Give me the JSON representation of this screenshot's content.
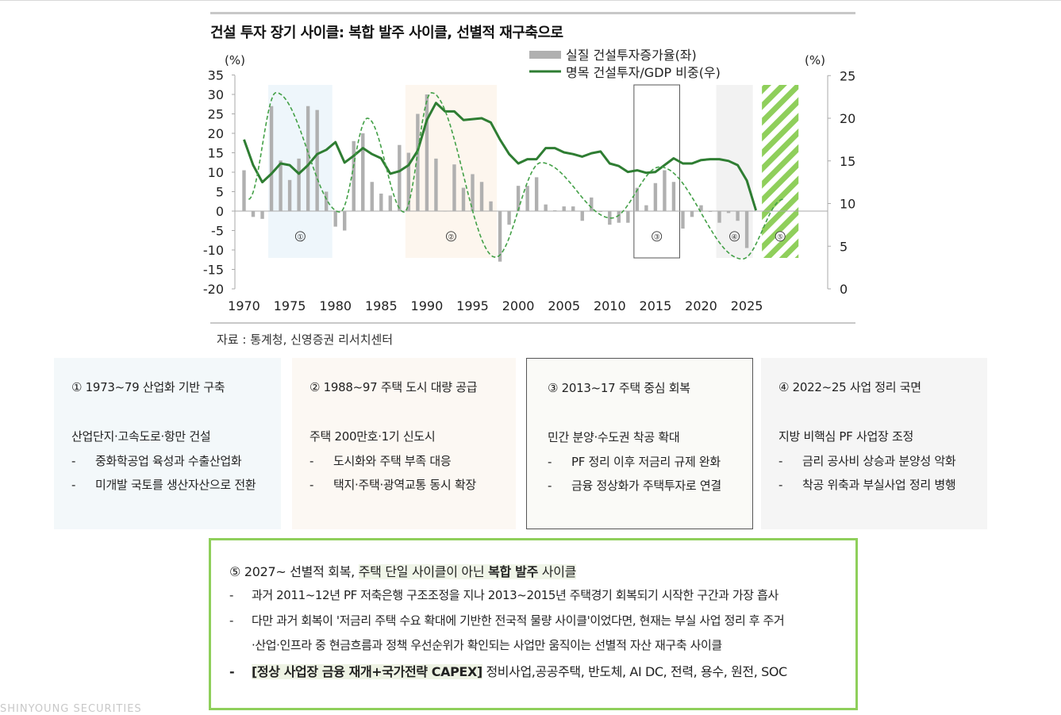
{
  "title": "건설 투자 장기 사이클: 복합 발주 사이클, 선별적 재구축으로",
  "source": "자료 : 통계청, 신영증권 리서치센터",
  "footer": "SHINYOUNG SECURITIES",
  "colors": {
    "bar": "#b0b0b0",
    "line": "#2e7d32",
    "dashed": "#43a047",
    "hatch": "#8fcf5b",
    "period1": "#eef6fb",
    "period2": "#fdf6ee",
    "period4": "#f2f2f2"
  },
  "chart_data": {
    "type": "bar+line",
    "y_left_unit": "(%)",
    "y_right_unit": "(%)",
    "y_left_range": [
      -20,
      35
    ],
    "y_right_range": [
      0,
      25
    ],
    "y_left_ticks": [
      "35",
      "30",
      "25",
      "20",
      "15",
      "10",
      "5",
      "0",
      "-5",
      "-10",
      "-15",
      "-20"
    ],
    "y_right_ticks": [
      "25",
      "20",
      "15",
      "10",
      "5",
      "0"
    ],
    "x_tick_labels": [
      "1970",
      "1975",
      "1980",
      "1985",
      "1990",
      "1995",
      "2000",
      "2005",
      "2010",
      "2015",
      "2020",
      "2025"
    ],
    "legend": [
      {
        "label": "실질 건설투자증가율(좌)",
        "kind": "bar"
      },
      {
        "label": "명목 건설투자/GDP 비중(우)",
        "kind": "line"
      }
    ],
    "series_bar": {
      "name": "실질 건설투자증가율(좌)",
      "x": [
        1970,
        1971,
        1972,
        1973,
        1974,
        1975,
        1976,
        1977,
        1978,
        1979,
        1980,
        1981,
        1982,
        1983,
        1984,
        1985,
        1986,
        1987,
        1988,
        1989,
        1990,
        1991,
        1992,
        1993,
        1994,
        1995,
        1996,
        1997,
        1998,
        1999,
        2000,
        2001,
        2002,
        2003,
        2004,
        2005,
        2006,
        2007,
        2008,
        2009,
        2010,
        2011,
        2012,
        2013,
        2014,
        2015,
        2016,
        2017,
        2018,
        2019,
        2020,
        2021,
        2022,
        2023,
        2024,
        2025
      ],
      "values": [
        10.5,
        -1.5,
        -2,
        27,
        13,
        8,
        13.5,
        27,
        26,
        5,
        -4,
        -5,
        18,
        20,
        7.5,
        4.5,
        4,
        17,
        15,
        25,
        30,
        13.5,
        0,
        12,
        6,
        9.5,
        7.5,
        2.5,
        -13,
        -3.5,
        6.5,
        6.5,
        8.7,
        1.7,
        0.2,
        1.2,
        1.2,
        -2.5,
        3.5,
        -0.2,
        -3.5,
        -3,
        -3,
        6,
        1.5,
        7.2,
        10.5,
        7.5,
        -4.5,
        -1.5,
        1.5,
        -0.2,
        -3,
        -0.5,
        -2.5,
        -9.5
      ]
    },
    "series_line": {
      "name": "명목 건설투자/GDP 비중(우)",
      "x": [
        1970,
        1971,
        1972,
        1973,
        1974,
        1975,
        1976,
        1977,
        1978,
        1979,
        1980,
        1981,
        1982,
        1983,
        1984,
        1985,
        1986,
        1987,
        1988,
        1989,
        1990,
        1991,
        1992,
        1993,
        1994,
        1995,
        1996,
        1997,
        1998,
        1999,
        2000,
        2001,
        2002,
        2003,
        2004,
        2005,
        2006,
        2007,
        2008,
        2009,
        2010,
        2011,
        2012,
        2013,
        2014,
        2015,
        2016,
        2017,
        2018,
        2019,
        2020,
        2021,
        2022,
        2023,
        2024,
        2025,
        2026
      ],
      "values": [
        17.5,
        14.5,
        12.5,
        13.5,
        14.7,
        14.5,
        13.5,
        14.5,
        15.8,
        16.3,
        17.2,
        14.8,
        15.6,
        16.5,
        15.8,
        15.3,
        13.5,
        13.8,
        14.5,
        16.2,
        19.8,
        21.8,
        20.8,
        20.8,
        19.8,
        19.9,
        20,
        19.5,
        17.5,
        15.8,
        14.7,
        15.2,
        15.2,
        16.5,
        16.5,
        16,
        15.8,
        15.5,
        15.9,
        16.1,
        14.7,
        14.4,
        13.7,
        13.9,
        13.6,
        13.7,
        14.5,
        15.3,
        14.7,
        14.7,
        15.1,
        15.2,
        15.2,
        15,
        14.5,
        12.7,
        9.2
      ]
    },
    "cycle_curve": {
      "style": "dashed",
      "x": [
        1970.5,
        1973.5,
        1980.5,
        1983.5,
        1987.5,
        1990.5,
        1997.5,
        2002.5,
        2010.2,
        2015.5,
        2024.5,
        2029
      ],
      "values": [
        10.5,
        23,
        9,
        20,
        9,
        23,
        3.7,
        14.8,
        8.3,
        14.3,
        3.5,
        10.5
      ]
    },
    "periods": [
      {
        "label": "①",
        "from": 1973,
        "to": 1979,
        "fill": "period1"
      },
      {
        "label": "②",
        "from": 1988,
        "to": 1997,
        "fill": "period2"
      },
      {
        "label": "③",
        "from": 2013,
        "to": 2017,
        "fill": "outline"
      },
      {
        "label": "④",
        "from": 2022,
        "to": 2025,
        "fill": "period4"
      },
      {
        "label": "⑤",
        "from": 2027,
        "to": 2030,
        "fill": "hatch"
      }
    ],
    "grid": false,
    "legend_position": "top-center"
  },
  "boxes": [
    {
      "title": "① 1973~79 산업화 기반 구축",
      "heading": "산업단지·고속도로·항만 건설",
      "bullets": [
        "중화학공업 육성과 수출산업화",
        "미개발 국토를 생산자산으로 전환"
      ]
    },
    {
      "title": "② 1988~97 주택 도시 대량 공급",
      "heading": "주택 200만호·1기 신도시",
      "bullets": [
        "도시화와 주택 부족 대응",
        "택지·주택·광역교통 동시 확장"
      ]
    },
    {
      "title": "③ 2013~17 주택 중심 회복",
      "heading": "민간 분양·수도권 착공 확대",
      "bullets": [
        "PF 정리 이후 저금리 규제 완화",
        "금융 정상화가 주택투자로 연결"
      ]
    },
    {
      "title": "④ 2022~25 사업 정리 국면",
      "heading": "지방 비핵심 PF 사업장 조정",
      "bullets": [
        "금리 공사비 상승과 분양성 악화",
        "착공 위축과 부실사업 정리 병행"
      ]
    }
  ],
  "box5": {
    "title_prefix": "⑤ 2027~ 선별적 회복, ",
    "title_hl1": "주택 단일 사이클이 아닌 ",
    "title_hl_bold": "복합 발주",
    "title_hl2": " 사이클",
    "dash": "-",
    "line1": "과거 2011~12년 PF 저축은행 구조조정을 지나 2013~2015년 주택경기 회복되기 시작한 구간과 가장 흡사",
    "line2": "다만 과거 회복이 '저금리 주택 수요 확대에 기반한 전국적 물량 사이클'이었다면, 현재는 부실 사업 정리 후 주거",
    "line3": "·산업·인프라 중 현금흐름과 정책 우선순위가 확인되는 사업만 움직이는 선별적 자산 재구축 사이클",
    "line4_bold": "[정상 사업장 금융 재개+국가전략 CAPEX]",
    "line4_rest": " 정비사업,공공주택, 반도체, AI DC, 전력, 용수, 원전, SOC"
  }
}
